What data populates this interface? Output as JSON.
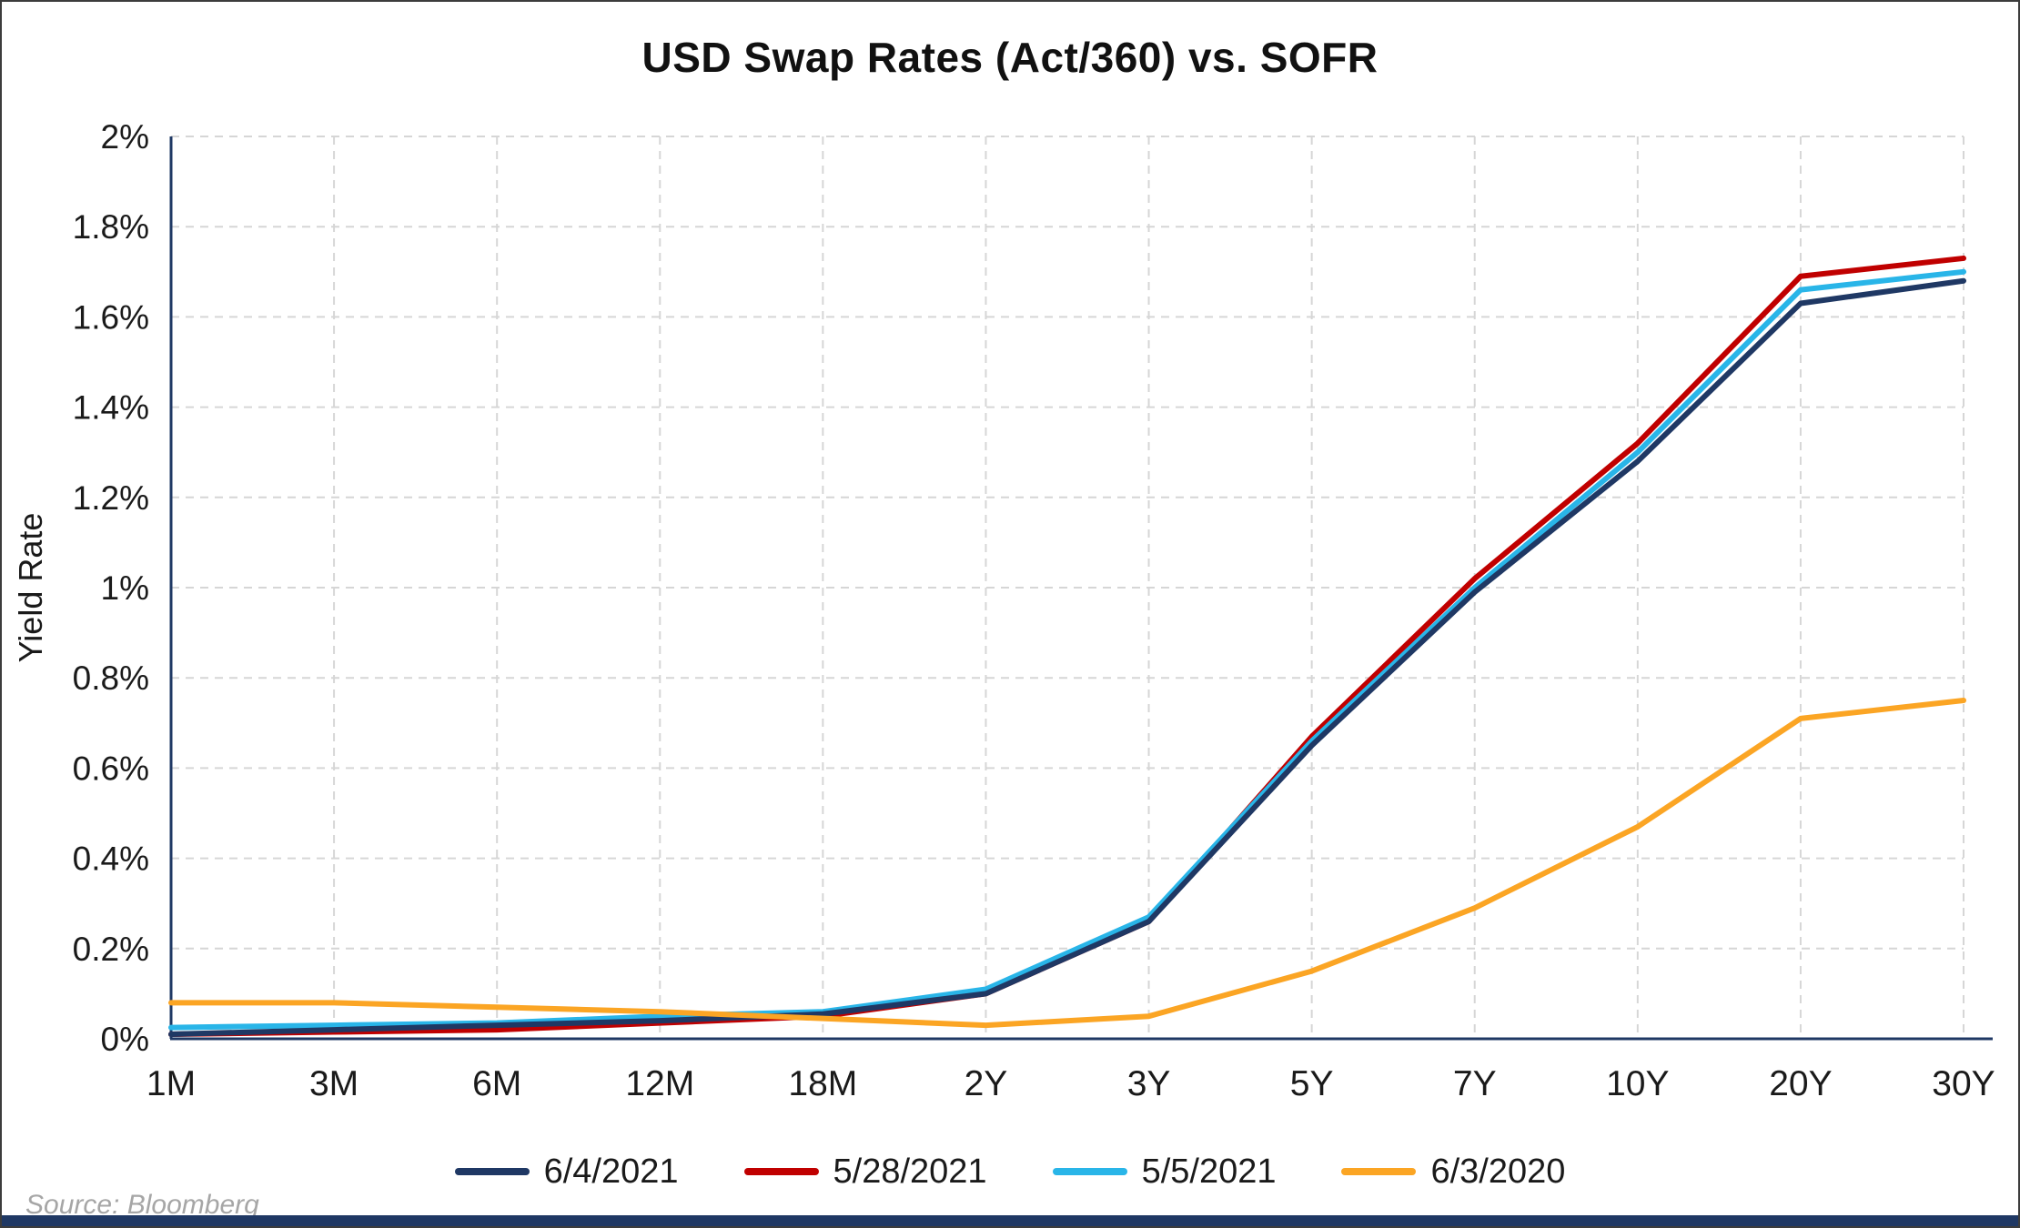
{
  "title": "USD Swap Rates (Act/360) vs. SOFR",
  "source": "Source: Bloomberg",
  "colors": {
    "axis": "#1f3864",
    "grid": "#d6d6d6",
    "text": "#1a1a1a",
    "footer_bar": "#1f3864",
    "source_text": "#a6a6a6"
  },
  "chart_data": {
    "type": "line",
    "title": "USD Swap Rates (Act/360) vs. SOFR",
    "xlabel": "",
    "ylabel": "Yield Rate",
    "ylim": [
      0,
      2
    ],
    "grid": "dashed-major-both-axes",
    "legend_position": "bottom",
    "y_ticks": [
      0,
      0.2,
      0.4,
      0.6,
      0.8,
      1.0,
      1.2,
      1.4,
      1.6,
      1.8,
      2.0
    ],
    "y_tick_labels": [
      "0%",
      "0.2%",
      "0.4%",
      "0.6%",
      "0.8%",
      "1%",
      "1.2%",
      "1.4%",
      "1.6%",
      "1.8%",
      "2%"
    ],
    "categories": [
      "1M",
      "3M",
      "6M",
      "12M",
      "18M",
      "2Y",
      "3Y",
      "5Y",
      "7Y",
      "10Y",
      "20Y",
      "30Y"
    ],
    "series": [
      {
        "name": "6/4/2021",
        "color": "#1f3864",
        "values": [
          0.01,
          0.02,
          0.03,
          0.04,
          0.055,
          0.1,
          0.26,
          0.65,
          0.99,
          1.28,
          1.63,
          1.68
        ]
      },
      {
        "name": "5/28/2021",
        "color": "#c00000",
        "values": [
          0.01,
          0.015,
          0.02,
          0.035,
          0.05,
          0.1,
          0.26,
          0.67,
          1.02,
          1.32,
          1.69,
          1.73
        ]
      },
      {
        "name": "5/5/2021",
        "color": "#29b5e8",
        "values": [
          0.025,
          0.03,
          0.035,
          0.05,
          0.06,
          0.11,
          0.27,
          0.66,
          1.0,
          1.3,
          1.66,
          1.7
        ]
      },
      {
        "name": "6/3/2020",
        "color": "#fba524",
        "values": [
          0.08,
          0.08,
          0.07,
          0.06,
          0.045,
          0.03,
          0.05,
          0.15,
          0.29,
          0.47,
          0.71,
          0.75
        ]
      }
    ],
    "z_order": [
      1,
      2,
      0,
      3
    ]
  }
}
